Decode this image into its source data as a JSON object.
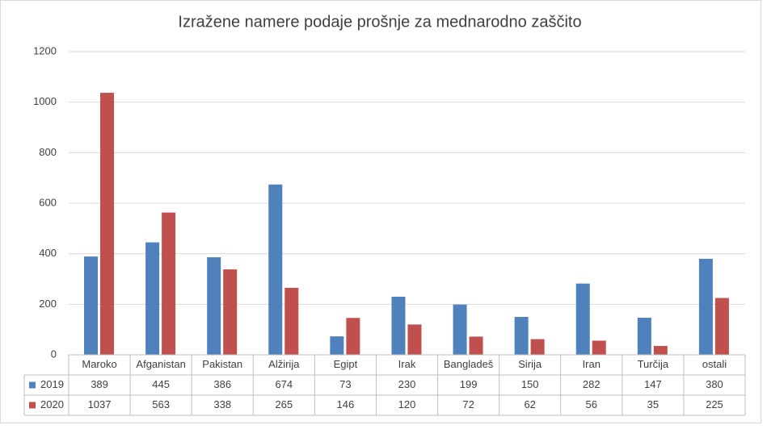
{
  "chart_data": {
    "type": "bar",
    "title": "Izražene namere podaje prošnje za mednarodno zaščito",
    "categories": [
      "Maroko",
      "Afganistan",
      "Pakistan",
      "Alžirija",
      "Egipt",
      "Irak",
      "Bangladeš",
      "Sirija",
      "Iran",
      "Turčija",
      "ostali"
    ],
    "series": [
      {
        "name": "2019",
        "color": "#4f81bd",
        "values": [
          389,
          445,
          386,
          674,
          73,
          230,
          199,
          150,
          282,
          147,
          380
        ]
      },
      {
        "name": "2020",
        "color": "#c0504d",
        "values": [
          1037,
          563,
          338,
          265,
          146,
          120,
          72,
          62,
          56,
          35,
          225
        ]
      }
    ],
    "ylim": [
      0,
      1200
    ],
    "yticks": [
      0,
      200,
      400,
      600,
      800,
      1000,
      1200
    ],
    "grid": true
  }
}
